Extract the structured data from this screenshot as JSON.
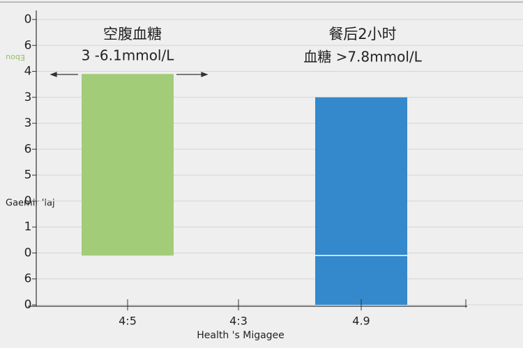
{
  "chart_data": {
    "type": "bar",
    "categories": [
      "4:5",
      "4:3",
      "4.9"
    ],
    "bases": [
      1.9,
      null,
      0
    ],
    "values": [
      8.9,
      null,
      8.0
    ],
    "colors": [
      "#a3cc79",
      null,
      "#3389cc"
    ],
    "threshold": 1.9,
    "ylim": [
      0,
      11
    ],
    "yticks": [
      {
        "value": 0,
        "label": "0"
      },
      {
        "value": 1,
        "label": "6"
      },
      {
        "value": 2,
        "label": "0"
      },
      {
        "value": 3,
        "label": "1"
      },
      {
        "value": 4,
        "label": "0"
      },
      {
        "value": 5,
        "label": "5"
      },
      {
        "value": 6,
        "label": "6"
      },
      {
        "value": 7,
        "label": "3"
      },
      {
        "value": 8,
        "label": "3"
      },
      {
        "value": 9,
        "label": "4"
      },
      {
        "value": 10,
        "label": "6"
      },
      {
        "value": 11,
        "label": "0"
      }
    ],
    "grid": true,
    "x_label": "Health 's Migagee",
    "y_label": "Gaemir 'laj",
    "y_label_small": "Ebou",
    "annotations": [
      {
        "lines": [
          "空腹血糖",
          "3 -6.1mmol/L"
        ]
      },
      {
        "lines": [
          "餐后2小时",
          "血糖 >7.8mmol/L"
        ]
      }
    ]
  }
}
